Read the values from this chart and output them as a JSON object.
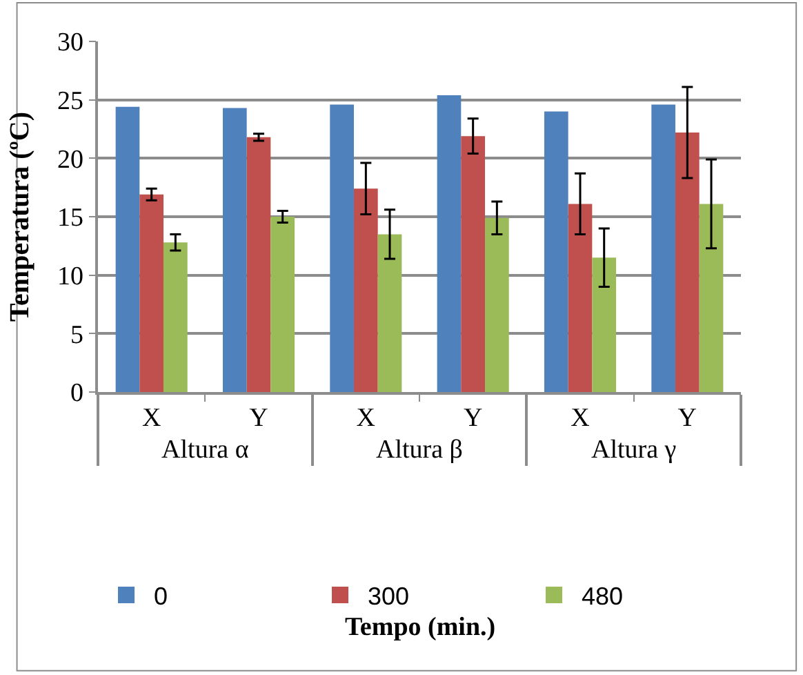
{
  "chart_data": {
    "type": "bar",
    "ylabel": "Temperatura (ºC)",
    "categories": [
      "X",
      "Y",
      "X",
      "Y",
      "X",
      "Y"
    ],
    "annotations": [
      "Altura α",
      "Altura β",
      "Altura γ",
      "Tempo (min.)"
    ],
    "series": [
      {
        "name": "0",
        "color": "#4f81bd",
        "values": [
          24.4,
          24.3,
          24.6,
          25.4,
          24.0,
          24.6
        ]
      },
      {
        "name": "300",
        "color": "#c0504d",
        "values": [
          16.9,
          21.8,
          17.4,
          21.9,
          16.1,
          22.2
        ],
        "errors": [
          0.5,
          0.3,
          2.2,
          1.5,
          2.6,
          3.9
        ]
      },
      {
        "name": "480",
        "color": "#9bbb59",
        "values": [
          12.8,
          15.0,
          13.5,
          14.9,
          11.5,
          16.1
        ],
        "errors": [
          0.7,
          0.5,
          2.1,
          1.4,
          2.5,
          3.8
        ]
      }
    ],
    "ylim": [
      0,
      30
    ],
    "yticks": [
      0,
      5,
      10,
      15,
      20,
      25,
      30
    ],
    "grid": "y",
    "legend": "bottom"
  }
}
